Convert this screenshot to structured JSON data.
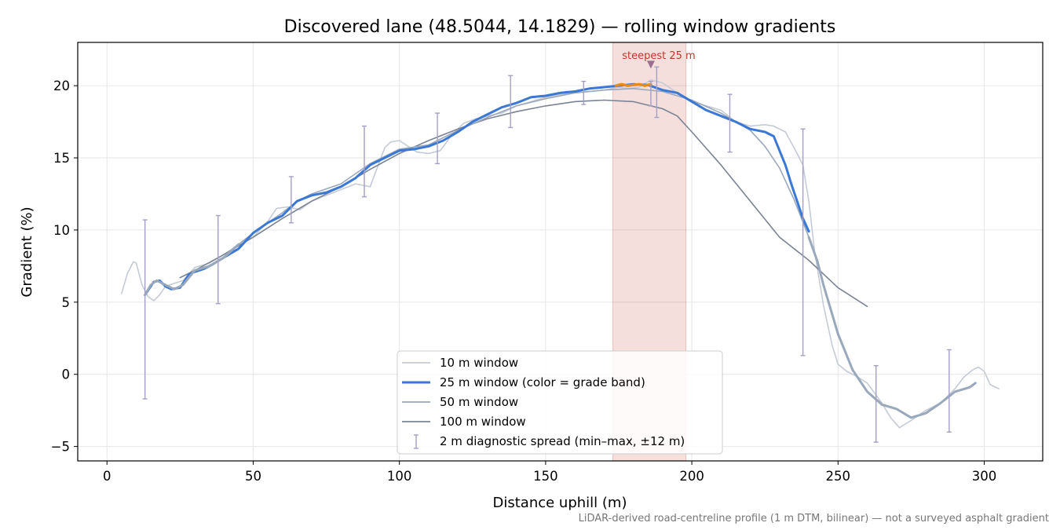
{
  "chart_data": {
    "type": "line",
    "title": "Discovered lane (48.5044, 14.1829) — rolling window gradients",
    "xlabel": "Distance uphill (m)",
    "ylabel": "Gradient (%)",
    "xlim": [
      -10,
      320
    ],
    "ylim": [
      -6,
      23
    ],
    "xticks": [
      0,
      50,
      100,
      150,
      200,
      250,
      300
    ],
    "yticks": [
      -5,
      0,
      5,
      10,
      15,
      20
    ],
    "grid": true,
    "legend_position": "bottom-center",
    "footnote": "LiDAR-derived road-centreline profile (1 m DTM, bilinear) — not a surveyed asphalt gradient",
    "highlight": {
      "x_range": [
        173,
        198
      ],
      "label": "steepest 25 m",
      "marker_x": 186,
      "marker_y": 21.4,
      "color": "#c0392b"
    },
    "steep_segment": {
      "x": [
        174,
        176,
        178,
        180,
        182,
        184,
        186
      ],
      "y": [
        20.0,
        20.1,
        20.0,
        20.05,
        20.1,
        20.0,
        20.1
      ],
      "color": "#e8891b"
    },
    "series": [
      {
        "name": "10 m window",
        "color": "#c5cbd6",
        "x": [
          5,
          7,
          9,
          10,
          12,
          14,
          16,
          18,
          20,
          23,
          26,
          30,
          35,
          40,
          45,
          50,
          55,
          58,
          62,
          66,
          70,
          75,
          80,
          85,
          90,
          95,
          97,
          100,
          103,
          106,
          110,
          114,
          118,
          122,
          126,
          130,
          135,
          140,
          145,
          150,
          155,
          160,
          165,
          170,
          175,
          178,
          182,
          186,
          190,
          195,
          200,
          205,
          210,
          215,
          220,
          225,
          228,
          232,
          236,
          238,
          240,
          242,
          245,
          248,
          250,
          253,
          256,
          260,
          265,
          268,
          271,
          275,
          280,
          285,
          290,
          293,
          296,
          298,
          300,
          302,
          305
        ],
        "y": [
          5.6,
          7.0,
          7.8,
          7.7,
          6.2,
          5.4,
          5.1,
          5.5,
          6.1,
          6.3,
          6.5,
          7.4,
          7.7,
          8.3,
          9.0,
          9.5,
          10.6,
          11.5,
          11.6,
          11.4,
          12.0,
          12.4,
          12.8,
          13.2,
          13.0,
          15.7,
          16.1,
          16.2,
          15.8,
          15.4,
          15.3,
          15.5,
          16.6,
          17.4,
          17.7,
          17.9,
          18.1,
          18.6,
          18.9,
          19.2,
          19.4,
          19.5,
          19.6,
          19.7,
          19.9,
          19.8,
          19.9,
          20.4,
          20.2,
          19.5,
          18.9,
          18.6,
          18.3,
          17.5,
          17.2,
          17.3,
          17.2,
          16.8,
          15.3,
          14.5,
          12.0,
          8.5,
          4.8,
          2.0,
          0.7,
          0.2,
          -0.1,
          -0.6,
          -2.0,
          -3.0,
          -3.7,
          -3.2,
          -2.5,
          -2.0,
          -1.0,
          -0.2,
          0.3,
          0.5,
          0.2,
          -0.7,
          -1.0
        ]
      },
      {
        "name": "25 m window (color = grade band)",
        "color": "#3a78d4",
        "x": [
          13,
          14,
          16,
          18,
          20,
          22,
          25,
          28,
          30,
          33,
          36,
          40,
          45,
          50,
          55,
          60,
          65,
          70,
          75,
          80,
          85,
          90,
          95,
          100,
          105,
          110,
          115,
          120,
          125,
          130,
          135,
          140,
          145,
          150,
          155,
          160,
          165,
          170,
          175,
          180,
          185,
          190,
          195,
          200,
          205,
          210,
          215,
          220,
          225,
          228,
          230,
          232,
          234,
          236,
          238,
          240
        ],
        "y": [
          5.5,
          5.8,
          6.4,
          6.5,
          6.1,
          5.9,
          6.0,
          6.9,
          7.1,
          7.3,
          7.6,
          8.1,
          8.7,
          9.8,
          10.5,
          11.0,
          12.0,
          12.4,
          12.6,
          13.0,
          13.6,
          14.5,
          15.0,
          15.5,
          15.6,
          15.8,
          16.2,
          16.8,
          17.5,
          18.0,
          18.5,
          18.8,
          19.2,
          19.3,
          19.5,
          19.6,
          19.8,
          19.9,
          20.0,
          20.1,
          20.05,
          19.7,
          19.5,
          18.9,
          18.3,
          17.9,
          17.5,
          17.0,
          16.8,
          16.5,
          15.5,
          14.5,
          13.2,
          12.0,
          10.8,
          9.9
        ]
      },
      {
        "name": "50 m window",
        "color": "#9aa8bb",
        "x": [
          13,
          15,
          17,
          20,
          23,
          26,
          30,
          35,
          40,
          45,
          50,
          55,
          60,
          65,
          70,
          80,
          90,
          100,
          110,
          120,
          130,
          140,
          150,
          160,
          170,
          180,
          190,
          200,
          210,
          220,
          225,
          230,
          235,
          240,
          243,
          245,
          250,
          255,
          260,
          265,
          270,
          275,
          280,
          285,
          290,
          295,
          297
        ],
        "y": [
          5.5,
          6.2,
          6.5,
          6.2,
          5.9,
          6.2,
          7.2,
          7.5,
          8.1,
          9.0,
          9.8,
          10.5,
          11.2,
          12.0,
          12.5,
          13.2,
          14.6,
          15.6,
          15.9,
          16.9,
          17.8,
          18.6,
          19.1,
          19.5,
          19.7,
          19.8,
          19.6,
          19.0,
          18.1,
          16.9,
          15.8,
          14.3,
          12.1,
          9.5,
          7.8,
          6.2,
          2.8,
          0.3,
          -1.2,
          -2.1,
          -2.4,
          -3.0,
          -2.7,
          -2.0,
          -1.2,
          -0.9,
          -0.6
        ]
      },
      {
        "name": "100 m window",
        "color": "#7b8494",
        "x": [
          25,
          30,
          40,
          50,
          60,
          70,
          80,
          90,
          100,
          110,
          120,
          130,
          140,
          150,
          160,
          170,
          180,
          190,
          195,
          200,
          210,
          220,
          230,
          240,
          250,
          260
        ],
        "y": [
          6.7,
          7.2,
          8.3,
          9.5,
          10.8,
          12.0,
          13.0,
          14.2,
          15.3,
          16.2,
          17.0,
          17.7,
          18.2,
          18.6,
          18.9,
          19.0,
          18.9,
          18.4,
          17.9,
          16.8,
          14.5,
          12.0,
          9.5,
          7.9,
          6.0,
          4.7
        ]
      }
    ],
    "diagnostic_spread": {
      "name": "2 m diagnostic spread (min–max, ±12 m)",
      "color": "#a49fc4",
      "x": [
        13,
        38,
        63,
        88,
        113,
        138,
        163,
        186,
        188,
        213,
        238,
        263,
        288
      ],
      "low": [
        -1.7,
        4.9,
        10.5,
        12.3,
        14.6,
        17.1,
        18.7,
        18.6,
        17.8,
        15.4,
        1.3,
        -4.7,
        -4.0
      ],
      "high": [
        10.7,
        11.0,
        13.7,
        17.2,
        18.1,
        20.7,
        20.3,
        20.3,
        21.3,
        19.4,
        17.0,
        0.6,
        1.7
      ]
    }
  }
}
